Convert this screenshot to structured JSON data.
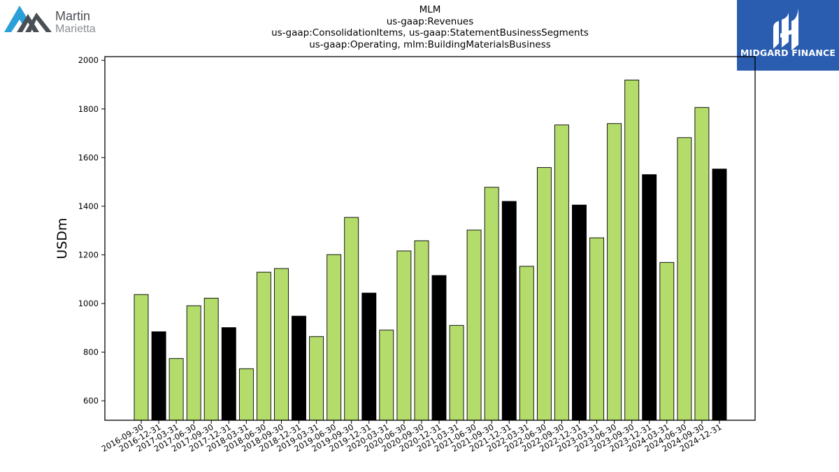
{
  "logos": {
    "left": {
      "line1": "Martin",
      "line2": "Marietta",
      "icon": "mountain-logo-icon"
    },
    "right": {
      "text": "MIDGARD FINANCE",
      "icon": "midgard-logo-icon",
      "background": "#2a5db0"
    }
  },
  "titles": [
    "MLM",
    "us-gaap:Revenues",
    "us-gaap:ConsolidationItems, us-gaap:StatementBusinessSegments",
    "us-gaap:Operating, mlm:BuildingMaterialsBusiness"
  ],
  "chart_data": {
    "type": "bar",
    "title": "MLM",
    "xlabel": "",
    "ylabel": "USDm",
    "ylim": [
      520,
      2015
    ],
    "yticks": [
      600,
      800,
      1000,
      1200,
      1400,
      1600,
      1800,
      2000
    ],
    "grid": false,
    "colors": {
      "quarter": "#b3dc6a",
      "year_end": "#000000",
      "edge": "#000000"
    },
    "categories": [
      "2016-09-30",
      "2016-12-31",
      "2017-03-31",
      "2017-06-30",
      "2017-09-30",
      "2017-12-31",
      "2018-03-31",
      "2018-06-30",
      "2018-09-30",
      "2018-12-31",
      "2019-03-31",
      "2019-06-30",
      "2019-09-30",
      "2019-12-31",
      "2020-03-31",
      "2020-06-30",
      "2020-09-30",
      "2020-12-31",
      "2021-03-31",
      "2021-06-30",
      "2021-09-30",
      "2021-12-31",
      "2022-03-31",
      "2022-06-30",
      "2022-09-30",
      "2022-12-31",
      "2023-03-31",
      "2023-06-30",
      "2023-09-30",
      "2023-12-31",
      "2024-03-31",
      "2024-06-30",
      "2024-09-30",
      "2024-12-31"
    ],
    "values": [
      1037,
      884,
      774,
      991,
      1022,
      901,
      732,
      1129,
      1144,
      948,
      864,
      1201,
      1354,
      1043,
      891,
      1216,
      1258,
      1115,
      910,
      1302,
      1478,
      1420,
      1153,
      1559,
      1734,
      1405,
      1270,
      1740,
      1919,
      1530,
      1169,
      1682,
      1806,
      1553
    ]
  }
}
